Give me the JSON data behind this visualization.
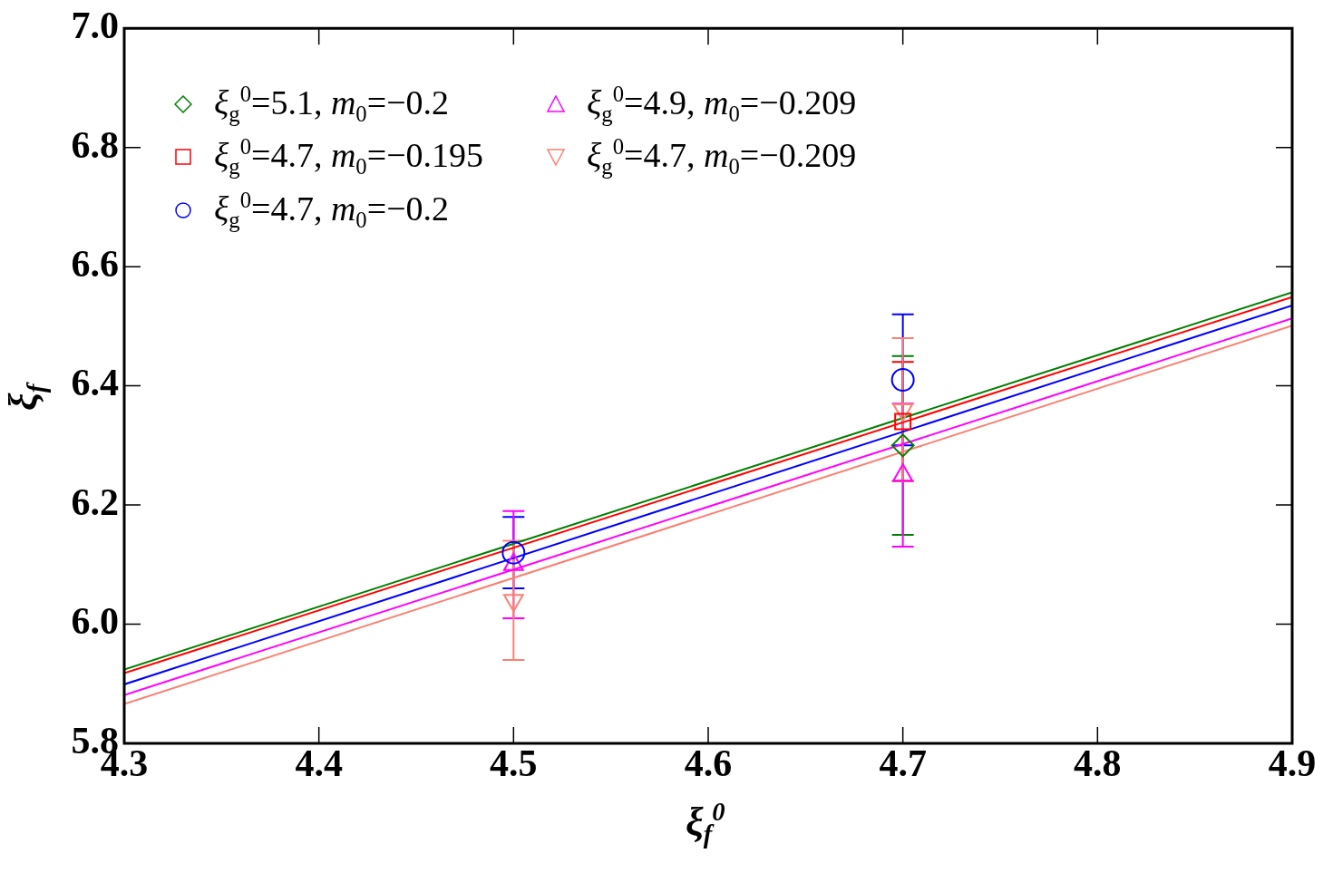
{
  "chart_data": {
    "type": "scatter",
    "xlabel": "ξ$_{f}$$^{0}$",
    "ylabel": "ξ$_{f}$",
    "xlim": [
      4.3,
      4.9
    ],
    "xticks": [
      4.3,
      4.4,
      4.5,
      4.6,
      4.7,
      4.8,
      4.9
    ],
    "ylim": [
      5.8,
      7.0
    ],
    "yticks": [
      {
        "value": 5.8,
        "label": "5.8"
      },
      {
        "value": 6.0,
        "label": "6.0"
      },
      {
        "value": 6.2,
        "label": "6.2"
      },
      {
        "value": 6.4,
        "label": "6.4"
      },
      {
        "value": 6.6,
        "label": "6.6"
      },
      {
        "value": 6.8,
        "label": "6.8"
      },
      {
        "value": 7.0,
        "label": "7.0"
      }
    ],
    "grid": false,
    "legend": "top left",
    "series": [
      {
        "name": "ξ$_{g}$$^{0}$=5.1, m$_{0}$=−0.2",
        "type": "scatter",
        "marker": "diamond",
        "color": "#008000",
        "x": [
          4.7
        ],
        "values": [
          6.3
        ],
        "errors": [
          0.15
        ]
      },
      {
        "name": "ξ$_{g}$$^{0}$=4.7, m$_{0}$=−0.195",
        "type": "scatter",
        "marker": "square",
        "color": "#ff0000",
        "x": [
          4.7
        ],
        "values": [
          6.34
        ],
        "errors": [
          0.1
        ]
      },
      {
        "name": "ξ$_{g}$$^{0}$=4.7, m$_{0}$=−0.2",
        "type": "scatter",
        "marker": "circle",
        "color": "#0000ff",
        "x": [
          4.5,
          4.7
        ],
        "values": [
          6.12,
          6.41
        ],
        "errors": [
          0.06,
          0.11
        ]
      },
      {
        "name": "ξ$_{g}$$^{0}$=4.9, m$_{0}$=−0.209",
        "type": "scatter",
        "marker": "triangle",
        "color": "#ff00ff",
        "x": [
          4.5,
          4.7
        ],
        "values": [
          6.1,
          6.25
        ],
        "errors": [
          0.09,
          0.12
        ]
      },
      {
        "name": "ξ$_{g}$$^{0}$=4.7,  m$_{0}$=−0.209",
        "type": "scatter",
        "marker": "triangle-down",
        "color": "#fa8072",
        "x": [
          4.5,
          4.7
        ],
        "values": [
          6.04,
          6.36
        ],
        "errors": [
          0.1,
          0.12
        ]
      },
      {
        "type": "line",
        "marker": "none",
        "color": "#008000",
        "x": [
          4.3,
          4.9
        ],
        "values": [
          5.924,
          6.557
        ]
      },
      {
        "type": "line",
        "marker": "none",
        "color": "#ff0000",
        "x": [
          4.3,
          4.9
        ],
        "values": [
          5.918,
          6.549
        ]
      },
      {
        "type": "line",
        "marker": "none",
        "color": "#0000ff",
        "x": [
          4.3,
          4.9
        ],
        "values": [
          5.899,
          6.535
        ]
      },
      {
        "type": "line",
        "marker": "none",
        "color": "#ff00ff",
        "x": [
          4.3,
          4.9
        ],
        "values": [
          5.881,
          6.513
        ]
      },
      {
        "type": "line",
        "marker": "none",
        "color": "#fa8072",
        "x": [
          4.3,
          4.9
        ],
        "values": [
          5.866,
          6.501
        ]
      }
    ]
  }
}
